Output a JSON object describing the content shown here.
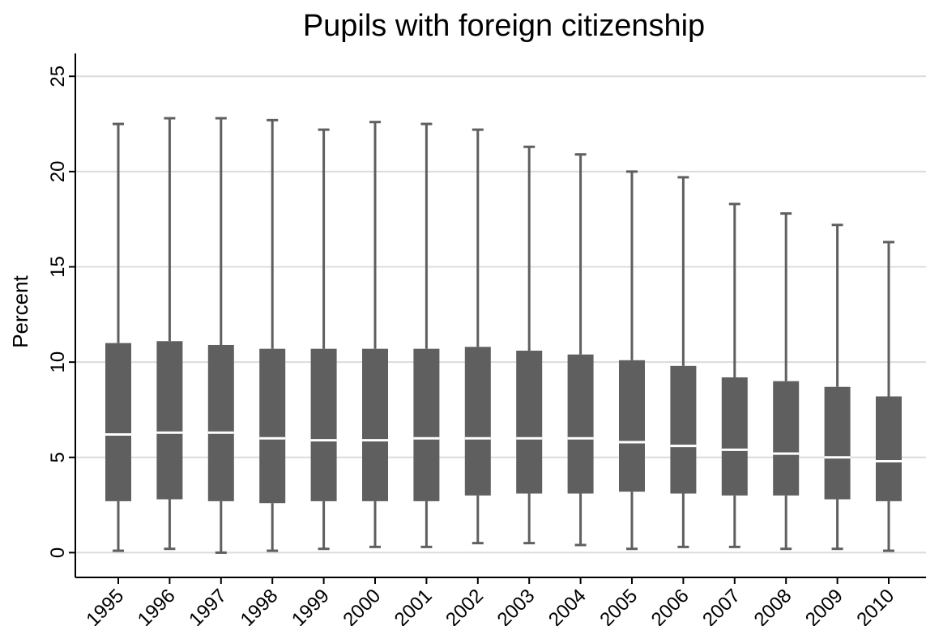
{
  "chart_data": {
    "type": "box",
    "title": "Pupils with foreign citizenship",
    "ylabel": "Percent",
    "xlabel": "",
    "ylim": [
      -1.3,
      26.2
    ],
    "yticks": [
      0,
      5,
      10,
      15,
      20,
      25
    ],
    "grid": true,
    "box_color": "#5f5f5f",
    "median_color": "#ffffff",
    "categories": [
      "1995",
      "1996",
      "1997",
      "1998",
      "1999",
      "2000",
      "2001",
      "2002",
      "2003",
      "2004",
      "2005",
      "2006",
      "2007",
      "2008",
      "2009",
      "2010"
    ],
    "boxes": [
      {
        "min": 0.1,
        "q1": 2.7,
        "median": 6.2,
        "q3": 11.0,
        "max": 22.5
      },
      {
        "min": 0.2,
        "q1": 2.8,
        "median": 6.3,
        "q3": 11.1,
        "max": 22.8
      },
      {
        "min": 0.0,
        "q1": 2.7,
        "median": 6.3,
        "q3": 10.9,
        "max": 22.8
      },
      {
        "min": 0.1,
        "q1": 2.6,
        "median": 6.0,
        "q3": 10.7,
        "max": 22.7
      },
      {
        "min": 0.2,
        "q1": 2.7,
        "median": 5.9,
        "q3": 10.7,
        "max": 22.2
      },
      {
        "min": 0.3,
        "q1": 2.7,
        "median": 5.9,
        "q3": 10.7,
        "max": 22.6
      },
      {
        "min": 0.3,
        "q1": 2.7,
        "median": 6.0,
        "q3": 10.7,
        "max": 22.5
      },
      {
        "min": 0.5,
        "q1": 3.0,
        "median": 6.0,
        "q3": 10.8,
        "max": 22.2
      },
      {
        "min": 0.5,
        "q1": 3.1,
        "median": 6.0,
        "q3": 10.6,
        "max": 21.3
      },
      {
        "min": 0.4,
        "q1": 3.1,
        "median": 6.0,
        "q3": 10.4,
        "max": 20.9
      },
      {
        "min": 0.2,
        "q1": 3.2,
        "median": 5.8,
        "q3": 10.1,
        "max": 20.0
      },
      {
        "min": 0.3,
        "q1": 3.1,
        "median": 5.6,
        "q3": 9.8,
        "max": 19.7
      },
      {
        "min": 0.3,
        "q1": 3.0,
        "median": 5.4,
        "q3": 9.2,
        "max": 18.3
      },
      {
        "min": 0.2,
        "q1": 3.0,
        "median": 5.2,
        "q3": 9.0,
        "max": 17.8
      },
      {
        "min": 0.2,
        "q1": 2.8,
        "median": 5.0,
        "q3": 8.7,
        "max": 17.2
      },
      {
        "min": 0.1,
        "q1": 2.7,
        "median": 4.8,
        "q3": 8.2,
        "max": 16.3
      }
    ]
  }
}
